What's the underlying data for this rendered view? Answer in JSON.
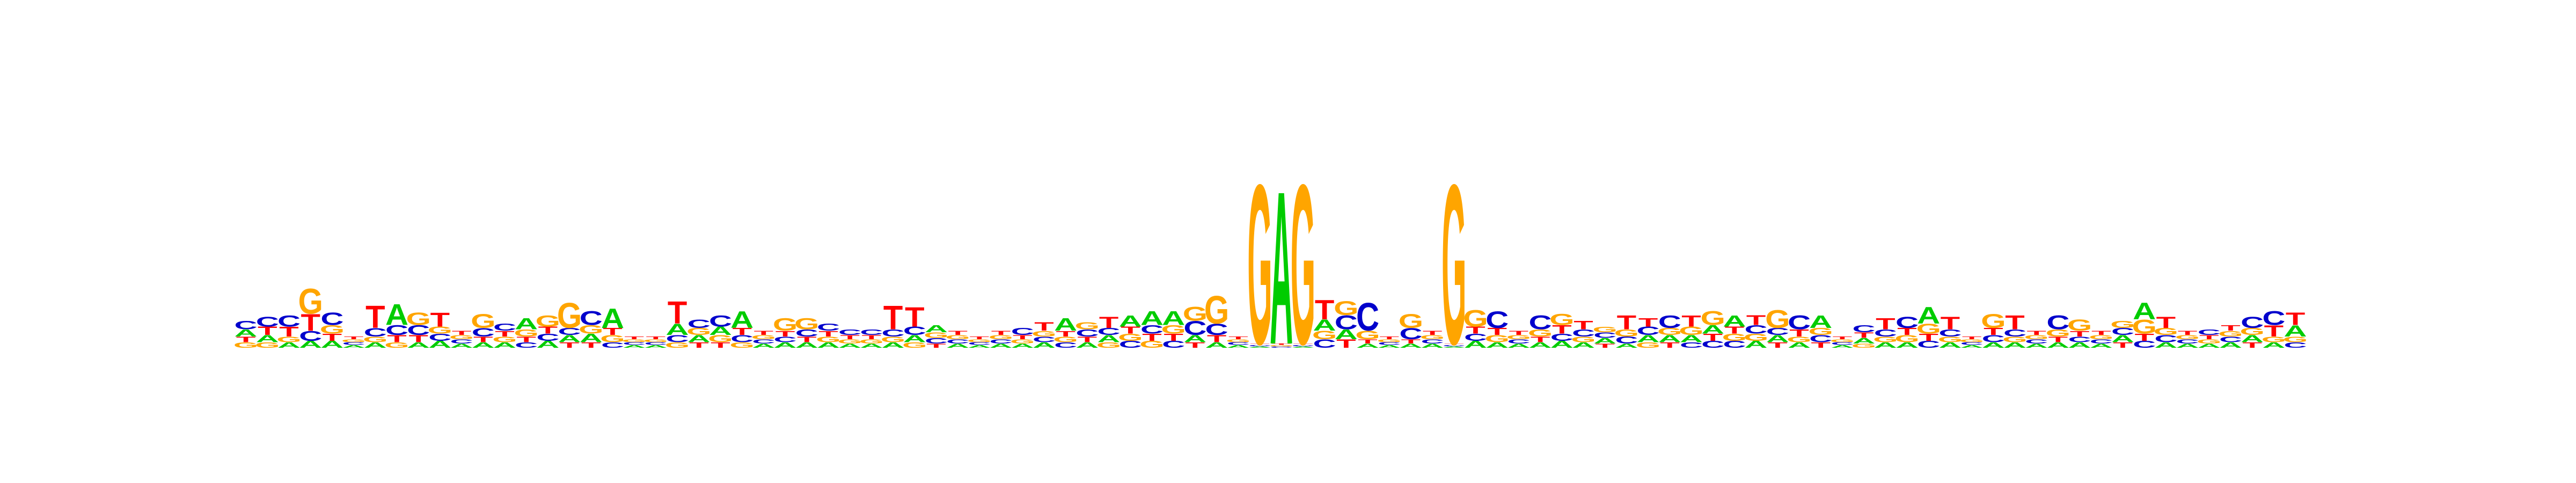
{
  "colors": {
    "A": "#00cc00",
    "C": "#0000cc",
    "G": "#ffa500",
    "T": "#ff0000"
  },
  "chart_data": {
    "type": "sequence-logo",
    "alphabet": [
      "A",
      "C",
      "G",
      "T"
    ],
    "ylim": [
      0,
      2
    ],
    "positions": [
      {
        "A": 0.05,
        "C": 0.06,
        "G": 0.04,
        "T": 0.04
      },
      {
        "A": 0.05,
        "C": 0.07,
        "G": 0.04,
        "T": 0.06
      },
      {
        "A": 0.04,
        "C": 0.08,
        "G": 0.04,
        "T": 0.07
      },
      {
        "A": 0.05,
        "C": 0.07,
        "G": 0.18,
        "T": 0.12
      },
      {
        "A": 0.05,
        "C": 0.09,
        "G": 0.06,
        "T": 0.05
      },
      {
        "A": 0.02,
        "C": 0.02,
        "G": 0.02,
        "T": 0.02
      },
      {
        "A": 0.04,
        "C": 0.06,
        "G": 0.04,
        "T": 0.16
      },
      {
        "A": 0.15,
        "C": 0.07,
        "G": 0.04,
        "T": 0.05
      },
      {
        "A": 0.04,
        "C": 0.07,
        "G": 0.09,
        "T": 0.05
      },
      {
        "A": 0.05,
        "C": 0.05,
        "G": 0.05,
        "T": 0.1
      },
      {
        "A": 0.03,
        "C": 0.03,
        "G": 0.03,
        "T": 0.03
      },
      {
        "A": 0.04,
        "C": 0.06,
        "G": 0.1,
        "T": 0.04
      },
      {
        "A": 0.04,
        "C": 0.05,
        "G": 0.04,
        "T": 0.04
      },
      {
        "A": 0.08,
        "C": 0.04,
        "G": 0.05,
        "T": 0.04
      },
      {
        "A": 0.05,
        "C": 0.05,
        "G": 0.08,
        "T": 0.05
      },
      {
        "A": 0.05,
        "C": 0.05,
        "G": 0.18,
        "T": 0.04
      },
      {
        "A": 0.06,
        "C": 0.1,
        "G": 0.06,
        "T": 0.04
      },
      {
        "A": 0.14,
        "C": 0.04,
        "G": 0.05,
        "T": 0.05
      },
      {
        "A": 0.02,
        "C": 0.02,
        "G": 0.02,
        "T": 0.02
      },
      {
        "A": 0.02,
        "C": 0.02,
        "G": 0.02,
        "T": 0.02
      },
      {
        "A": 0.08,
        "C": 0.05,
        "G": 0.04,
        "T": 0.16
      },
      {
        "A": 0.05,
        "C": 0.06,
        "G": 0.05,
        "T": 0.04
      },
      {
        "A": 0.06,
        "C": 0.08,
        "G": 0.05,
        "T": 0.04
      },
      {
        "A": 0.12,
        "C": 0.05,
        "G": 0.04,
        "T": 0.05
      },
      {
        "A": 0.03,
        "C": 0.03,
        "G": 0.03,
        "T": 0.03
      },
      {
        "A": 0.04,
        "C": 0.04,
        "G": 0.09,
        "T": 0.04
      },
      {
        "A": 0.04,
        "C": 0.05,
        "G": 0.08,
        "T": 0.04
      },
      {
        "A": 0.04,
        "C": 0.05,
        "G": 0.04,
        "T": 0.04
      },
      {
        "A": 0.03,
        "C": 0.04,
        "G": 0.03,
        "T": 0.03
      },
      {
        "A": 0.03,
        "C": 0.04,
        "G": 0.03,
        "T": 0.03
      },
      {
        "A": 0.04,
        "C": 0.05,
        "G": 0.04,
        "T": 0.17
      },
      {
        "A": 0.05,
        "C": 0.06,
        "G": 0.04,
        "T": 0.14
      },
      {
        "A": 0.05,
        "C": 0.04,
        "G": 0.04,
        "T": 0.03
      },
      {
        "A": 0.03,
        "C": 0.03,
        "G": 0.03,
        "T": 0.03
      },
      {
        "A": 0.02,
        "C": 0.02,
        "G": 0.02,
        "T": 0.02
      },
      {
        "A": 0.03,
        "C": 0.03,
        "G": 0.03,
        "T": 0.03
      },
      {
        "A": 0.03,
        "C": 0.05,
        "G": 0.03,
        "T": 0.03
      },
      {
        "A": 0.04,
        "C": 0.04,
        "G": 0.04,
        "T": 0.06
      },
      {
        "A": 0.09,
        "C": 0.04,
        "G": 0.04,
        "T": 0.04
      },
      {
        "A": 0.04,
        "C": 0.05,
        "G": 0.05,
        "T": 0.04
      },
      {
        "A": 0.05,
        "C": 0.05,
        "G": 0.04,
        "T": 0.08
      },
      {
        "A": 0.08,
        "C": 0.05,
        "G": 0.05,
        "T": 0.05
      },
      {
        "A": 0.1,
        "C": 0.06,
        "G": 0.05,
        "T": 0.05
      },
      {
        "A": 0.1,
        "C": 0.05,
        "G": 0.06,
        "T": 0.05
      },
      {
        "A": 0.05,
        "C": 0.1,
        "G": 0.1,
        "T": 0.04
      },
      {
        "A": 0.04,
        "C": 0.08,
        "G": 0.2,
        "T": 0.05
      },
      {
        "A": 0.02,
        "C": 0.02,
        "G": 0.02,
        "T": 0.02
      },
      {
        "A": 0.01,
        "C": 0.01,
        "G": 1.15,
        "T": 0.01
      },
      {
        "A": 1.1,
        "C": 0.01,
        "G": 0.01,
        "T": 0.01
      },
      {
        "A": 0.01,
        "C": 0.01,
        "G": 1.15,
        "T": 0.01
      },
      {
        "A": 0.08,
        "C": 0.06,
        "G": 0.06,
        "T": 0.14
      },
      {
        "A": 0.07,
        "C": 0.1,
        "G": 0.1,
        "T": 0.06
      },
      {
        "A": 0.03,
        "C": 0.2,
        "G": 0.06,
        "T": 0.03
      },
      {
        "A": 0.02,
        "C": 0.02,
        "G": 0.02,
        "T": 0.02
      },
      {
        "A": 0.03,
        "C": 0.08,
        "G": 0.1,
        "T": 0.03
      },
      {
        "A": 0.03,
        "C": 0.03,
        "G": 0.03,
        "T": 0.03
      },
      {
        "A": 0.01,
        "C": 0.01,
        "G": 1.15,
        "T": 0.01
      },
      {
        "A": 0.05,
        "C": 0.05,
        "G": 0.12,
        "T": 0.05
      },
      {
        "A": 0.04,
        "C": 0.12,
        "G": 0.05,
        "T": 0.05
      },
      {
        "A": 0.03,
        "C": 0.03,
        "G": 0.03,
        "T": 0.03
      },
      {
        "A": 0.04,
        "C": 0.1,
        "G": 0.05,
        "T": 0.04
      },
      {
        "A": 0.05,
        "C": 0.05,
        "G": 0.08,
        "T": 0.06
      },
      {
        "A": 0.04,
        "C": 0.05,
        "G": 0.04,
        "T": 0.06
      },
      {
        "A": 0.04,
        "C": 0.04,
        "G": 0.04,
        "T": 0.03
      },
      {
        "A": 0.03,
        "C": 0.05,
        "G": 0.05,
        "T": 0.1
      },
      {
        "A": 0.05,
        "C": 0.06,
        "G": 0.04,
        "T": 0.06
      },
      {
        "A": 0.05,
        "C": 0.09,
        "G": 0.05,
        "T": 0.04
      },
      {
        "A": 0.05,
        "C": 0.04,
        "G": 0.06,
        "T": 0.08
      },
      {
        "A": 0.06,
        "C": 0.05,
        "G": 0.1,
        "T": 0.05
      },
      {
        "A": 0.08,
        "C": 0.05,
        "G": 0.05,
        "T": 0.05
      },
      {
        "A": 0.05,
        "C": 0.06,
        "G": 0.05,
        "T": 0.07
      },
      {
        "A": 0.05,
        "C": 0.05,
        "G": 0.13,
        "T": 0.04
      },
      {
        "A": 0.04,
        "C": 0.1,
        "G": 0.04,
        "T": 0.05
      },
      {
        "A": 0.09,
        "C": 0.05,
        "G": 0.05,
        "T": 0.04
      },
      {
        "A": 0.02,
        "C": 0.02,
        "G": 0.02,
        "T": 0.02
      },
      {
        "A": 0.04,
        "C": 0.05,
        "G": 0.03,
        "T": 0.04
      },
      {
        "A": 0.04,
        "C": 0.05,
        "G": 0.04,
        "T": 0.08
      },
      {
        "A": 0.04,
        "C": 0.08,
        "G": 0.05,
        "T": 0.05
      },
      {
        "A": 0.12,
        "C": 0.05,
        "G": 0.07,
        "T": 0.05
      },
      {
        "A": 0.04,
        "C": 0.05,
        "G": 0.04,
        "T": 0.09
      },
      {
        "A": 0.02,
        "C": 0.02,
        "G": 0.02,
        "T": 0.02
      },
      {
        "A": 0.04,
        "C": 0.05,
        "G": 0.1,
        "T": 0.05
      },
      {
        "A": 0.04,
        "C": 0.05,
        "G": 0.04,
        "T": 0.1
      },
      {
        "A": 0.03,
        "C": 0.03,
        "G": 0.03,
        "T": 0.03
      },
      {
        "A": 0.04,
        "C": 0.1,
        "G": 0.05,
        "T": 0.04
      },
      {
        "A": 0.04,
        "C": 0.04,
        "G": 0.08,
        "T": 0.04
      },
      {
        "A": 0.03,
        "C": 0.03,
        "G": 0.03,
        "T": 0.03
      },
      {
        "A": 0.05,
        "C": 0.05,
        "G": 0.05,
        "T": 0.04
      },
      {
        "A": 0.12,
        "C": 0.05,
        "G": 0.1,
        "T": 0.05
      },
      {
        "A": 0.04,
        "C": 0.05,
        "G": 0.05,
        "T": 0.08
      },
      {
        "A": 0.03,
        "C": 0.03,
        "G": 0.03,
        "T": 0.03
      },
      {
        "A": 0.03,
        "C": 0.04,
        "G": 0.03,
        "T": 0.03
      },
      {
        "A": 0.04,
        "C": 0.04,
        "G": 0.04,
        "T": 0.04
      },
      {
        "A": 0.05,
        "C": 0.08,
        "G": 0.05,
        "T": 0.04
      },
      {
        "A": 0.04,
        "C": 0.1,
        "G": 0.04,
        "T": 0.08
      },
      {
        "A": 0.08,
        "C": 0.04,
        "G": 0.04,
        "T": 0.09
      }
    ]
  }
}
